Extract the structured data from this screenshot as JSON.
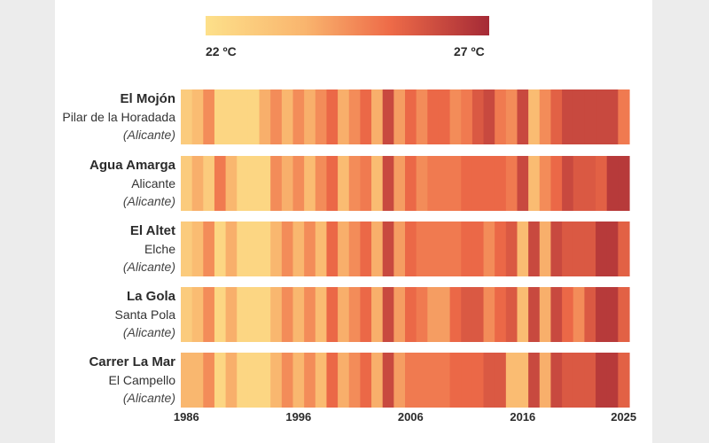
{
  "colors": {
    "page_bg": "#ececec",
    "panel_bg": "#ffffff",
    "gradient": [
      "#fde08a",
      "#f9b56e",
      "#ee6b48",
      "#a52a36"
    ]
  },
  "chart_data": {
    "type": "heatmap",
    "color_scale": {
      "min_label": "22 ºC",
      "max_label": "27 ºC",
      "min": 22,
      "max": 27
    },
    "x_ticks": [
      1986,
      1996,
      2006,
      2016,
      2025
    ],
    "years": [
      1986,
      1987,
      1988,
      1989,
      1990,
      1991,
      1992,
      1993,
      1994,
      1995,
      1996,
      1997,
      1998,
      1999,
      2000,
      2001,
      2002,
      2003,
      2004,
      2005,
      2006,
      2007,
      2008,
      2009,
      2010,
      2011,
      2012,
      2013,
      2014,
      2015,
      2016,
      2017,
      2018,
      2019,
      2020,
      2021,
      2022,
      2023,
      2024,
      2025
    ],
    "rows": [
      {
        "name": "El Mojón",
        "town": "Pilar de la Horadada",
        "province": "(Alicante)",
        "values": [
          22.8,
          23.4,
          24.6,
          22.4,
          22.4,
          22.4,
          22.4,
          23.8,
          24.6,
          23.6,
          24.6,
          23.8,
          24.6,
          25.4,
          23.8,
          24.6,
          25.4,
          23.8,
          26.2,
          24.2,
          25.4,
          24.6,
          25.4,
          25.4,
          24.6,
          25.0,
          25.8,
          26.2,
          25.0,
          24.6,
          26.2,
          23.4,
          24.6,
          25.6,
          26.2,
          26.2,
          26.2,
          26.2,
          26.2,
          25.0
        ]
      },
      {
        "name": "Agua Amarga",
        "town": "Alicante",
        "province": "(Alicante)",
        "values": [
          22.8,
          23.8,
          22.8,
          25.0,
          23.6,
          22.4,
          22.4,
          22.4,
          24.6,
          23.8,
          24.6,
          23.4,
          24.6,
          25.4,
          23.4,
          24.6,
          25.0,
          23.4,
          26.2,
          24.2,
          25.4,
          24.6,
          25.0,
          25.0,
          25.0,
          25.4,
          25.4,
          25.4,
          25.4,
          25.0,
          26.2,
          23.4,
          24.6,
          25.4,
          26.2,
          25.8,
          25.8,
          25.6,
          26.6,
          26.6
        ]
      },
      {
        "name": "El Altet",
        "town": "Elche",
        "province": "(Alicante)",
        "values": [
          22.8,
          23.4,
          24.6,
          22.4,
          23.8,
          22.4,
          22.4,
          22.4,
          23.6,
          24.6,
          23.6,
          24.6,
          23.4,
          25.4,
          23.8,
          24.6,
          25.4,
          23.8,
          26.2,
          24.2,
          25.4,
          25.0,
          25.0,
          25.0,
          25.0,
          25.4,
          25.4,
          24.6,
          25.4,
          25.8,
          23.4,
          26.2,
          23.8,
          26.2,
          25.8,
          25.8,
          25.8,
          26.6,
          26.6,
          25.6
        ]
      },
      {
        "name": "La Gola",
        "town": "Santa Pola",
        "province": "(Alicante)",
        "values": [
          22.8,
          23.4,
          24.6,
          22.4,
          23.8,
          22.4,
          22.4,
          22.4,
          23.6,
          24.6,
          23.6,
          24.6,
          23.4,
          25.4,
          23.8,
          24.6,
          25.4,
          23.8,
          26.2,
          24.2,
          25.4,
          25.0,
          24.2,
          24.2,
          25.4,
          25.8,
          25.8,
          24.6,
          25.4,
          25.8,
          23.4,
          26.2,
          23.8,
          26.2,
          25.4,
          24.6,
          25.8,
          26.6,
          26.6,
          25.6
        ]
      },
      {
        "name": "Carrer La Mar",
        "town": "El Campello",
        "province": "(Alicante)",
        "values": [
          23.6,
          23.6,
          24.6,
          22.4,
          23.8,
          22.4,
          22.4,
          22.4,
          23.6,
          24.6,
          23.6,
          24.6,
          23.4,
          25.4,
          23.8,
          24.6,
          25.4,
          23.8,
          26.2,
          24.2,
          25.0,
          25.0,
          25.0,
          25.0,
          25.4,
          25.4,
          25.4,
          25.8,
          25.8,
          23.4,
          23.4,
          26.2,
          23.8,
          26.2,
          25.8,
          25.8,
          25.8,
          26.6,
          26.6,
          25.6
        ]
      }
    ]
  }
}
